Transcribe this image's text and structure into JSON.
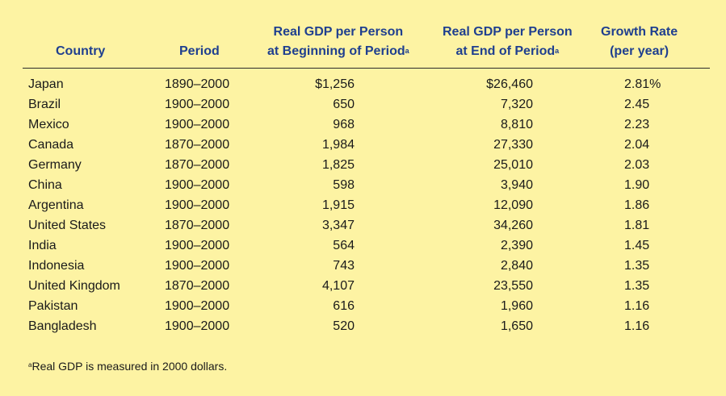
{
  "headers": {
    "country": "Country",
    "period": "Period",
    "begin_line1": "Real GDP per Person",
    "begin_line2": "at Beginning of Period",
    "end_line1": "Real GDP per Person",
    "end_line2": "at End of Period",
    "growth_line1": "Growth Rate",
    "growth_line2": "(per year)",
    "footnote_marker": "a"
  },
  "rows": [
    {
      "country": "Japan",
      "period": "1890–2000",
      "begin": "$1,256",
      "end": "$26,460",
      "growth": "2.81%"
    },
    {
      "country": "Brazil",
      "period": "1900–2000",
      "begin": "650",
      "end": "7,320",
      "growth": "2.45"
    },
    {
      "country": "Mexico",
      "period": "1900–2000",
      "begin": "968",
      "end": "8,810",
      "growth": "2.23"
    },
    {
      "country": "Canada",
      "period": "1870–2000",
      "begin": "1,984",
      "end": "27,330",
      "growth": "2.04"
    },
    {
      "country": "Germany",
      "period": "1870–2000",
      "begin": "1,825",
      "end": "25,010",
      "growth": "2.03"
    },
    {
      "country": "China",
      "period": "1900–2000",
      "begin": "598",
      "end": "3,940",
      "growth": "1.90"
    },
    {
      "country": "Argentina",
      "period": "1900–2000",
      "begin": "1,915",
      "end": "12,090",
      "growth": "1.86"
    },
    {
      "country": "United States",
      "period": "1870–2000",
      "begin": "3,347",
      "end": "34,260",
      "growth": "1.81"
    },
    {
      "country": "India",
      "period": "1900–2000",
      "begin": "564",
      "end": "2,390",
      "growth": "1.45"
    },
    {
      "country": "Indonesia",
      "period": "1900–2000",
      "begin": "743",
      "end": "2,840",
      "growth": "1.35"
    },
    {
      "country": "United Kingdom",
      "period": "1870–2000",
      "begin": "4,107",
      "end": "23,550",
      "growth": "1.35"
    },
    {
      "country": "Pakistan",
      "period": "1900–2000",
      "begin": "616",
      "end": "1,960",
      "growth": "1.16"
    },
    {
      "country": "Bangladesh",
      "period": "1900–2000",
      "begin": "520",
      "end": "1,650",
      "growth": "1.16"
    }
  ],
  "footnote": {
    "marker": "a",
    "text": "Real GDP is measured in 2000 dollars."
  }
}
